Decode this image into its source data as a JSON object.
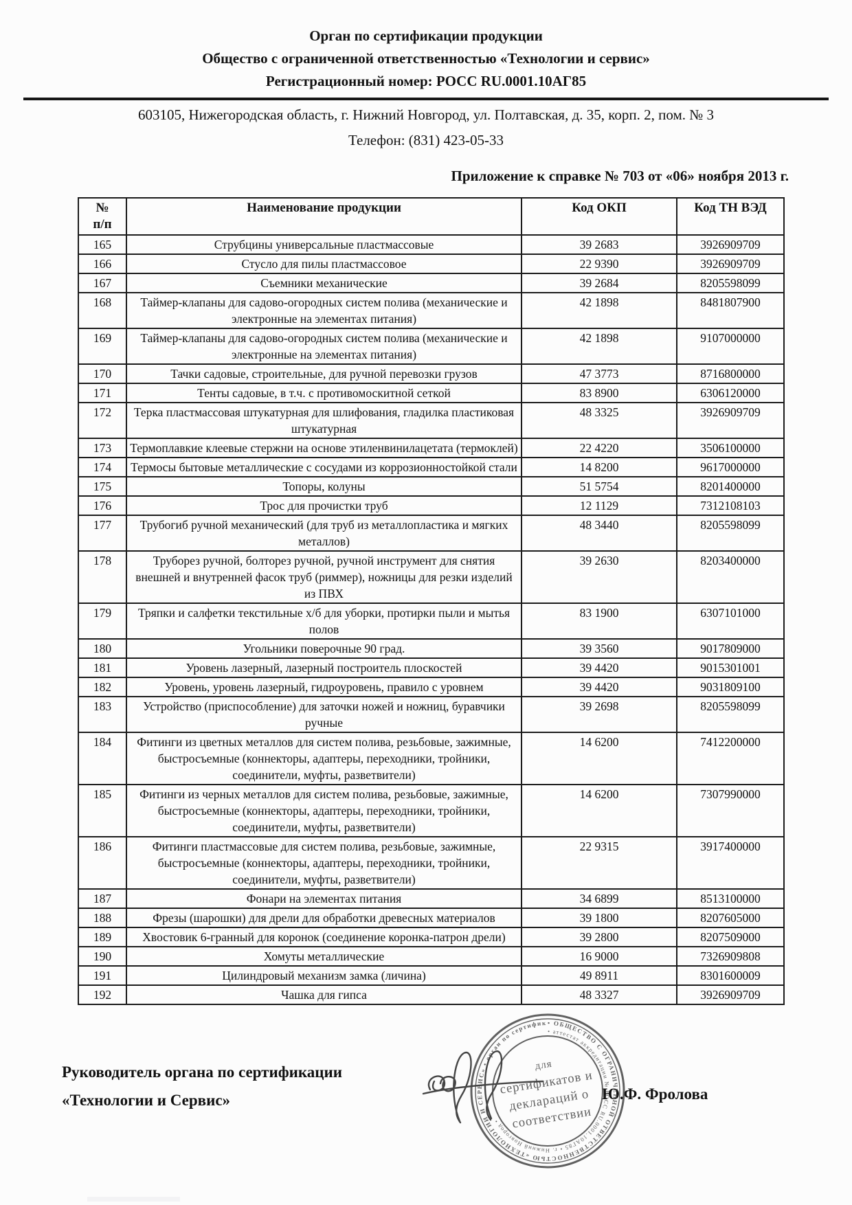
{
  "header": {
    "org_line": "Орган по сертификации продукции",
    "company_line": "Общество с ограниченной ответственностью «Технологии и сервис»",
    "reg_line": "Регистрационный номер: РОСС RU.0001.10АГ85",
    "address": "603105, Нижегородская область, г. Нижний Новгород, ул. Полтавская, д. 35, корп. 2, пом. № 3",
    "phone": "Телефон: (831) 423-05-33",
    "annex": "Приложение к справке № 703 от «06» ноября 2013 г."
  },
  "table": {
    "columns": [
      "№\nп/п",
      "Наименование продукции",
      "Код ОКП",
      "Код ТН ВЭД"
    ],
    "rows": [
      {
        "num": "165",
        "name": "Струбцины универсальные пластмассовые",
        "okp": "39 2683",
        "tnved": "3926909709"
      },
      {
        "num": "166",
        "name": "Стусло для пилы пластмассовое",
        "okp": "22 9390",
        "tnved": "3926909709"
      },
      {
        "num": "167",
        "name": "Съемники механические",
        "okp": "39 2684",
        "tnved": "8205598099"
      },
      {
        "num": "168",
        "name": "Таймер-клапаны для садово-огородных систем полива (механические и электронные на элементах питания)",
        "okp": "42 1898",
        "tnved": "8481807900"
      },
      {
        "num": "169",
        "name": "Таймер-клапаны для садово-огородных систем полива (механические и электронные на элементах питания)",
        "okp": "42 1898",
        "tnved": "9107000000"
      },
      {
        "num": "170",
        "name": "Тачки садовые, строительные, для ручной перевозки грузов",
        "okp": "47 3773",
        "tnved": "8716800000"
      },
      {
        "num": "171",
        "name": "Тенты садовые, в т.ч. с противомоскитной сеткой",
        "okp": "83 8900",
        "tnved": "6306120000"
      },
      {
        "num": "172",
        "name": "Терка пластмассовая штукатурная для шлифования, гладилка пластиковая штукатурная",
        "okp": "48 3325",
        "tnved": "3926909709"
      },
      {
        "num": "173",
        "name": "Термоплавкие клеевые стержни на основе этиленвинилацетата (термоклей)",
        "okp": "22 4220",
        "tnved": "3506100000"
      },
      {
        "num": "174",
        "name": "Термосы бытовые металлические с сосудами из коррозионностойкой стали",
        "okp": "14 8200",
        "tnved": "9617000000"
      },
      {
        "num": "175",
        "name": "Топоры, колуны",
        "okp": "51 5754",
        "tnved": "8201400000"
      },
      {
        "num": "176",
        "name": "Трос для прочистки труб",
        "okp": "12 1129",
        "tnved": "7312108103"
      },
      {
        "num": "177",
        "name": "Трубогиб ручной механический (для труб из металлопластика и мягких металлов)",
        "okp": "48 3440",
        "tnved": "8205598099"
      },
      {
        "num": "178",
        "name": "Труборез ручной, болторез ручной, ручной инструмент для снятия внешней и внутренней фасок труб (риммер), ножницы для резки изделий из ПВХ",
        "okp": "39 2630",
        "tnved": "8203400000"
      },
      {
        "num": "179",
        "name": "Тряпки и салфетки текстильные х/б для уборки, протирки пыли и мытья полов",
        "okp": "83 1900",
        "tnved": "6307101000"
      },
      {
        "num": "180",
        "name": "Угольники поверочные 90 град.",
        "okp": "39 3560",
        "tnved": "9017809000"
      },
      {
        "num": "181",
        "name": "Уровень лазерный, лазерный построитель плоскостей",
        "okp": "39 4420",
        "tnved": "9015301001"
      },
      {
        "num": "182",
        "name": "Уровень, уровень лазерный, гидроуровень, правило с уровнем",
        "okp": "39 4420",
        "tnved": "9031809100"
      },
      {
        "num": "183",
        "name": "Устройство (приспособление) для заточки ножей и ножниц, буравчики ручные",
        "okp": "39 2698",
        "tnved": "8205598099"
      },
      {
        "num": "184",
        "name": "Фитинги из цветных металлов для систем полива, резьбовые, зажимные, быстросъемные (коннекторы, адаптеры, переходники, тройники, соединители, муфты, разветвители)",
        "okp": "14 6200",
        "tnved": "7412200000"
      },
      {
        "num": "185",
        "name": "Фитинги из черных металлов для систем полива, резьбовые, зажимные, быстросъемные (коннекторы, адаптеры, переходники, тройники, соединители, муфты, разветвители)",
        "okp": "14 6200",
        "tnved": "7307990000"
      },
      {
        "num": "186",
        "name": "Фитинги пластмассовые для систем полива, резьбовые, зажимные, быстросъемные (коннекторы, адаптеры, переходники, тройники, соединители, муфты, разветвители)",
        "okp": "22 9315",
        "tnved": "3917400000"
      },
      {
        "num": "187",
        "name": "Фонари на элементах питания",
        "okp": "34 6899",
        "tnved": "8513100000"
      },
      {
        "num": "188",
        "name": "Фрезы (шарошки) для дрели для обработки древесных материалов",
        "okp": "39 1800",
        "tnved": "8207605000"
      },
      {
        "num": "189",
        "name": "Хвостовик 6-гранный для коронок (соединение коронка-патрон дрели)",
        "okp": "39 2800",
        "tnved": "8207509000"
      },
      {
        "num": "190",
        "name": "Хомуты металлические",
        "okp": "16 9000",
        "tnved": "7326909808"
      },
      {
        "num": "191",
        "name": "Цилиндровый механизм замка (личина)",
        "okp": "49 8911",
        "tnved": "8301600009"
      },
      {
        "num": "192",
        "name": "Чашка для гипса",
        "okp": "48 3327",
        "tnved": "3926909709"
      }
    ]
  },
  "footer": {
    "role_line1": "Руководитель органа по сертификации",
    "role_line2": "«Технологии и Сервис»",
    "signer": "Ю.Ф. Фролова",
    "stamp": {
      "ring_text_outer": "• ОБЩЕСТВО С ОГРАНИЧЕННОЙ ОТВЕТСТВЕННОСТЬЮ «ТЕХНОЛОГИИ И СЕРВИС» • орган по сертификации продукции и услуг",
      "ring_text_inner": "• аттестат аккредитации № РОСС RU.0001.10АГ85 • г. Нижний Новгород •",
      "center_lines": [
        "для",
        "сертификатов и",
        "деклараций о",
        "соответствии"
      ],
      "ink_color": "#3f3f3f"
    }
  }
}
